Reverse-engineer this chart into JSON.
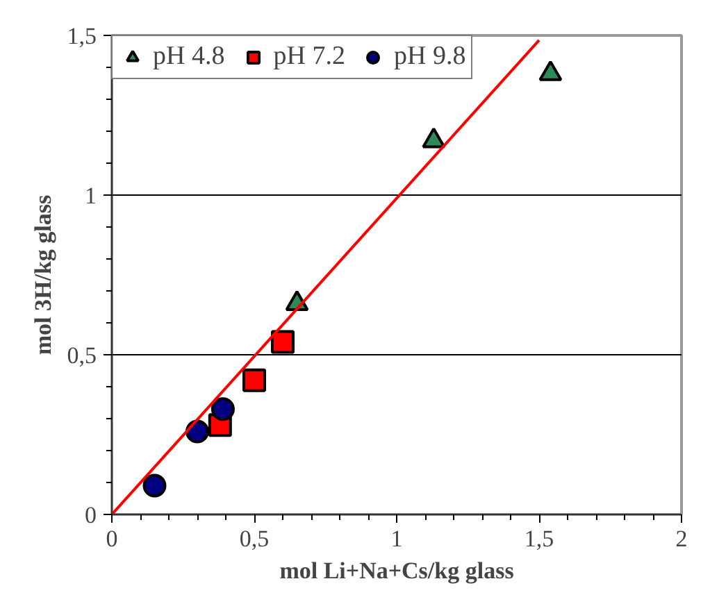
{
  "chart_data": {
    "type": "scatter",
    "xlabel": "mol Li+Na+Cs/kg glass",
    "ylabel": "mol 3H/kg glass",
    "xlim": [
      0,
      2
    ],
    "ylim": [
      0,
      1.5
    ],
    "xticks": [
      0,
      {
        "value": 0.5,
        "label": "0,5"
      },
      1,
      {
        "value": 1.5,
        "label": "1,5"
      },
      2
    ],
    "yticks": [
      0,
      {
        "value": 0.5,
        "label": "0,5"
      },
      1,
      {
        "value": 1.5,
        "label": "1,5"
      }
    ],
    "grid": "y",
    "legend": "top left",
    "series": [
      {
        "name": "pH 4.8",
        "color": "#2e8b57",
        "marker": "triangle",
        "x": [
          0.65,
          1.13,
          1.54
        ],
        "values": [
          0.66,
          1.17,
          1.38
        ]
      },
      {
        "name": "pH 7.2",
        "color": "#ff0000",
        "marker": "square",
        "x": [
          0.38,
          0.5,
          0.6
        ],
        "values": [
          0.28,
          0.42,
          0.54
        ]
      },
      {
        "name": "pH 9.8",
        "color": "#000080",
        "marker": "circle",
        "x": [
          0.15,
          0.3,
          0.39
        ],
        "values": [
          0.09,
          0.26,
          0.33
        ]
      },
      {
        "type": "line",
        "color": "#ff0000",
        "x": [
          0,
          1.5
        ],
        "values": [
          0,
          1.485
        ]
      }
    ]
  }
}
